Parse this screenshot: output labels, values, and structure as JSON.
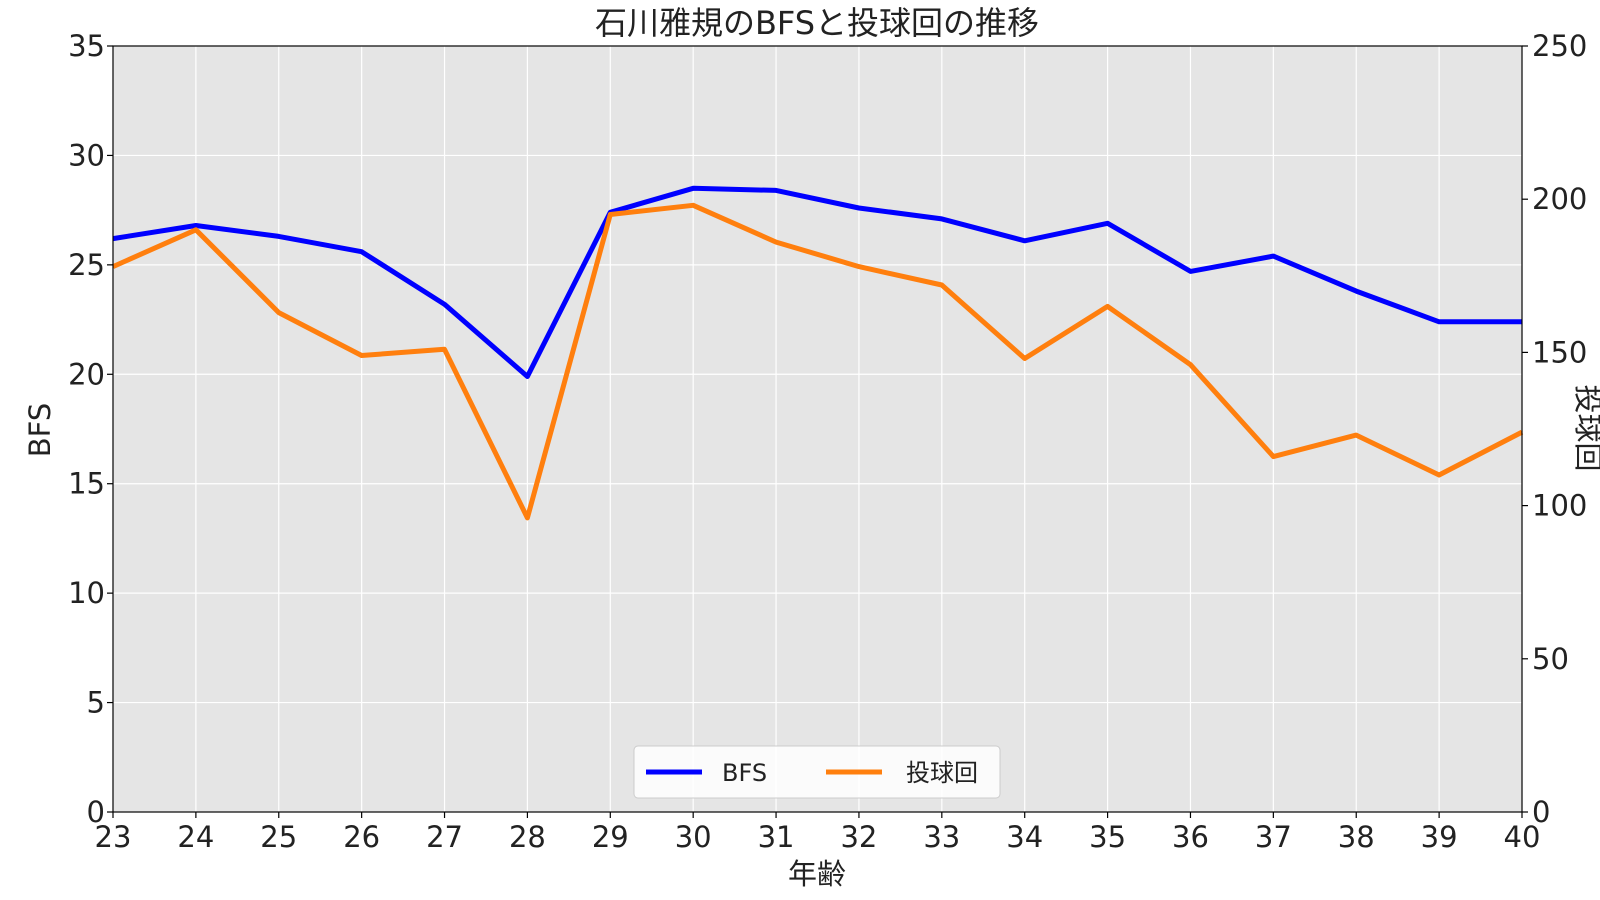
{
  "chart_data": {
    "type": "line",
    "title": "石川雅規のBFSと投球回の推移",
    "xlabel": "年齢",
    "ylabel_left": "BFS",
    "ylabel_right": "投球回",
    "x": [
      23,
      24,
      25,
      26,
      27,
      28,
      29,
      30,
      31,
      32,
      33,
      34,
      35,
      36,
      37,
      38,
      39,
      40
    ],
    "xlim": [
      23,
      40
    ],
    "ylim_left": [
      0,
      35
    ],
    "ylim_right": [
      0,
      250
    ],
    "yticks_left": [
      0,
      5,
      10,
      15,
      20,
      25,
      30,
      35
    ],
    "yticks_right": [
      0,
      50,
      100,
      150,
      200,
      250
    ],
    "grid": true,
    "background": "#e5e5e5",
    "legend_position": "lower center",
    "series": [
      {
        "name": "BFS",
        "axis": "left",
        "color": "#0000ff",
        "values": [
          26.2,
          26.8,
          26.3,
          25.6,
          23.2,
          19.9,
          27.4,
          28.5,
          28.4,
          27.6,
          27.1,
          26.1,
          26.9,
          24.7,
          25.4,
          23.8,
          22.4,
          22.4
        ]
      },
      {
        "name": "投球回",
        "axis": "right",
        "color": "#ff7f0e",
        "values": [
          178,
          190,
          163,
          149,
          151,
          96,
          195,
          198,
          186,
          178,
          172,
          148,
          165,
          146,
          116,
          123,
          110,
          124
        ]
      }
    ]
  }
}
